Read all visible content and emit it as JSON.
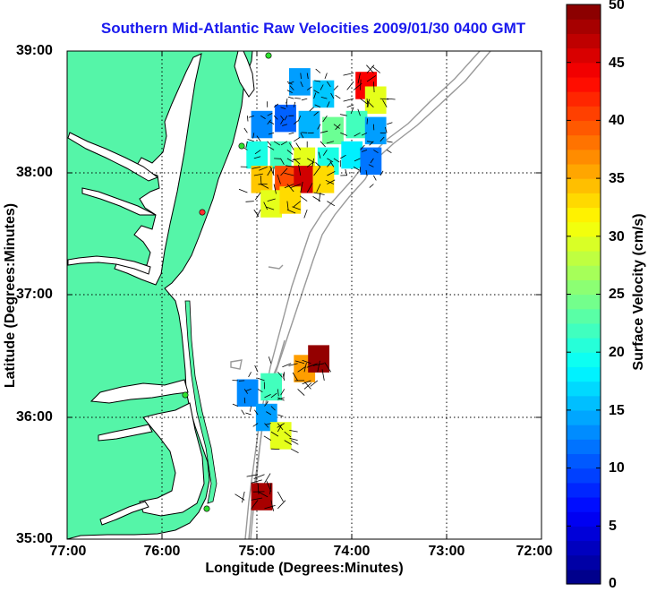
{
  "title": "Southern Mid-Atlantic Raw Velocities 2009/01/30 0400 GMT",
  "xlabel": "Longitude (Degrees:Minutes)",
  "ylabel": "Latitude (Degrees:Minutes)",
  "colorbar_label": "Surface Velocity (cm/s)",
  "x_ticks": [
    "77:00",
    "76:00",
    "75:00",
    "74:00",
    "73:00",
    "72:00"
  ],
  "y_ticks": [
    "39:00",
    "38:00",
    "37:00",
    "36:00",
    "35:00"
  ],
  "colorbar_ticks": [
    "50",
    "45",
    "40",
    "35",
    "30",
    "25",
    "20",
    "15",
    "10",
    "5",
    "0"
  ],
  "colors": {
    "land": "#55f5a8",
    "title": "#1a1aee",
    "station": "#2ee02e",
    "station_alt": "#ff3030"
  },
  "chart_data": {
    "type": "heatmap",
    "title": "Southern Mid-Atlantic Raw Velocities 2009/01/30 0400 GMT",
    "xlabel": "Longitude (Degrees:Minutes)",
    "ylabel": "Latitude (Degrees:Minutes)",
    "xlim": [
      -77,
      -72
    ],
    "ylim": [
      35,
      39
    ],
    "clim": [
      0,
      50
    ],
    "colormap": "jet",
    "grid": true,
    "colorbar": {
      "label": "Surface Velocity (cm/s)",
      "ticks": [
        0,
        5,
        10,
        15,
        20,
        25,
        30,
        35,
        40,
        45,
        50
      ]
    },
    "north_region": {
      "lon_range": [
        -75.1,
        -73.6
      ],
      "lat_range": [
        37.7,
        38.85
      ],
      "cells": [
        {
          "lon": -74.55,
          "lat": 38.75,
          "speed": 14
        },
        {
          "lon": -74.3,
          "lat": 38.65,
          "speed": 16
        },
        {
          "lon": -73.85,
          "lat": 38.72,
          "speed": 44
        },
        {
          "lon": -73.75,
          "lat": 38.6,
          "speed": 30
        },
        {
          "lon": -74.95,
          "lat": 38.4,
          "speed": 13
        },
        {
          "lon": -74.7,
          "lat": 38.45,
          "speed": 11
        },
        {
          "lon": -74.45,
          "lat": 38.4,
          "speed": 15
        },
        {
          "lon": -74.2,
          "lat": 38.35,
          "speed": 24
        },
        {
          "lon": -73.95,
          "lat": 38.4,
          "speed": 22
        },
        {
          "lon": -73.75,
          "lat": 38.35,
          "speed": 14
        },
        {
          "lon": -75.0,
          "lat": 38.15,
          "speed": 20
        },
        {
          "lon": -74.75,
          "lat": 38.15,
          "speed": 22
        },
        {
          "lon": -74.5,
          "lat": 38.1,
          "speed": 30
        },
        {
          "lon": -74.25,
          "lat": 38.1,
          "speed": 20
        },
        {
          "lon": -74.0,
          "lat": 38.15,
          "speed": 18
        },
        {
          "lon": -73.8,
          "lat": 38.1,
          "speed": 12
        },
        {
          "lon": -74.95,
          "lat": 37.95,
          "speed": 34
        },
        {
          "lon": -74.7,
          "lat": 37.95,
          "speed": 40
        },
        {
          "lon": -74.5,
          "lat": 37.95,
          "speed": 46
        },
        {
          "lon": -74.3,
          "lat": 37.95,
          "speed": 33
        },
        {
          "lon": -74.85,
          "lat": 37.75,
          "speed": 30
        },
        {
          "lon": -74.65,
          "lat": 37.78,
          "speed": 33
        }
      ]
    },
    "south_region": {
      "lon_range": [
        -75.2,
        -74.2
      ],
      "lat_range": [
        35.25,
        36.45
      ],
      "cells": [
        {
          "lon": -75.1,
          "lat": 36.2,
          "speed": 13
        },
        {
          "lon": -74.85,
          "lat": 36.25,
          "speed": 22
        },
        {
          "lon": -74.9,
          "lat": 36.0,
          "speed": 14
        },
        {
          "lon": -74.75,
          "lat": 35.85,
          "speed": 30
        },
        {
          "lon": -74.5,
          "lat": 36.4,
          "speed": 36
        },
        {
          "lon": -74.35,
          "lat": 36.48,
          "speed": 49
        },
        {
          "lon": -74.95,
          "lat": 35.35,
          "speed": 48
        }
      ]
    }
  }
}
